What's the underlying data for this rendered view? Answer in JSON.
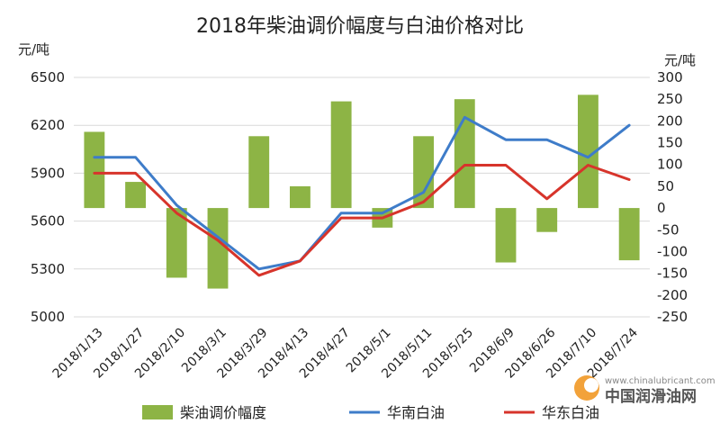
{
  "chart_data": {
    "type": "bar+line",
    "title": "2018年柴油调价幅度与白油价格对比",
    "categories": [
      "2018/1/13",
      "2018/1/27",
      "2018/2/10",
      "2018/3/1",
      "2018/3/29",
      "2018/4/13",
      "2018/4/27",
      "2018/5/1",
      "2018/5/11",
      "2018/5/25",
      "2018/6/9",
      "2018/6/26",
      "2018/7/10",
      "2018/7/24"
    ],
    "left_axis": {
      "unit": "元/吨",
      "min": 5000,
      "max": 6500,
      "ticks": [
        5000,
        5300,
        5600,
        5900,
        6200,
        6500
      ]
    },
    "right_axis": {
      "unit": "元/吨",
      "min": -250,
      "max": 300,
      "ticks": [
        -250,
        -200,
        -150,
        -100,
        -50,
        0,
        50,
        100,
        150,
        200,
        250,
        300
      ]
    },
    "series": [
      {
        "name": "柴油调价幅度",
        "type": "bar",
        "axis": "right",
        "color": "#8DB445",
        "values": [
          175,
          60,
          -160,
          -185,
          165,
          50,
          245,
          -45,
          165,
          250,
          -125,
          -55,
          260,
          -120
        ]
      },
      {
        "name": "华南白油",
        "type": "line",
        "axis": "left",
        "color": "#3E7CC9",
        "values": [
          6000,
          6000,
          5700,
          5500,
          5300,
          5350,
          5650,
          5650,
          5780,
          6250,
          6110,
          6110,
          6000,
          6200
        ]
      },
      {
        "name": "华东白油",
        "type": "line",
        "axis": "left",
        "color": "#D7342B",
        "values": [
          5900,
          5900,
          5650,
          5480,
          5260,
          5350,
          5620,
          5620,
          5720,
          5950,
          5950,
          5740,
          5950,
          5860
        ]
      }
    ],
    "legend_position": "bottom",
    "grid": true
  },
  "watermark": {
    "url": "www.chinalubricant.com",
    "name": "中国润滑油网"
  }
}
